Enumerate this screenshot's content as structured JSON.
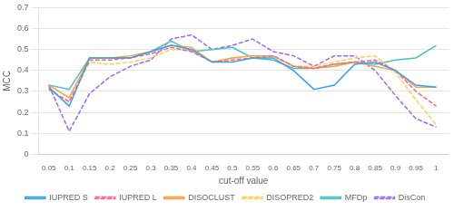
{
  "chart_data": {
    "type": "line",
    "x": [
      0.05,
      0.1,
      0.15,
      0.2,
      0.25,
      0.3,
      0.35,
      0.4,
      0.45,
      0.5,
      0.55,
      0.6,
      0.65,
      0.7,
      0.75,
      0.8,
      0.85,
      0.9,
      0.95,
      1.0
    ],
    "series": [
      {
        "name": "IUPRED S",
        "line_style": "solid",
        "values": [
          0.32,
          0.23,
          0.46,
          0.46,
          0.46,
          0.49,
          0.52,
          0.5,
          0.44,
          0.44,
          0.46,
          0.46,
          0.4,
          0.31,
          0.33,
          0.43,
          0.44,
          0.4,
          0.33,
          0.32
        ]
      },
      {
        "name": "IUPRED L",
        "line_style": "dashed",
        "values": [
          0.31,
          0.25,
          0.45,
          0.45,
          0.46,
          0.48,
          0.51,
          0.49,
          0.44,
          0.45,
          0.46,
          0.47,
          0.42,
          0.41,
          0.43,
          0.44,
          0.45,
          0.4,
          0.3,
          0.23
        ]
      },
      {
        "name": "DISOCLUST",
        "line_style": "solid",
        "values": [
          0.33,
          0.27,
          0.46,
          0.46,
          0.47,
          0.49,
          0.52,
          0.51,
          0.44,
          0.46,
          0.47,
          0.47,
          0.42,
          0.41,
          0.42,
          0.44,
          0.42,
          0.4,
          0.32,
          0.32
        ]
      },
      {
        "name": "DISOPRED2",
        "line_style": "dashed",
        "values": [
          0.31,
          0.25,
          0.44,
          0.43,
          0.44,
          0.46,
          0.5,
          0.5,
          0.44,
          0.46,
          0.47,
          0.47,
          0.42,
          0.42,
          0.44,
          0.46,
          0.47,
          0.39,
          0.26,
          0.14
        ]
      },
      {
        "name": "MFDp",
        "line_style": "solid",
        "values": [
          0.33,
          0.31,
          0.46,
          0.46,
          0.46,
          0.49,
          0.54,
          0.49,
          0.5,
          0.51,
          0.46,
          0.45,
          0.41,
          0.41,
          0.43,
          0.44,
          0.43,
          0.45,
          0.46,
          0.52
        ]
      },
      {
        "name": "DisCon",
        "line_style": "dashed",
        "values": [
          0.33,
          0.11,
          0.29,
          0.37,
          0.42,
          0.45,
          0.55,
          0.57,
          0.5,
          0.52,
          0.55,
          0.49,
          0.47,
          0.42,
          0.47,
          0.47,
          0.4,
          0.28,
          0.17,
          0.13
        ]
      }
    ],
    "marker": "none",
    "xlabel": "cut-off value",
    "ylabel": "MCC",
    "xlim": [
      0.025,
      1.03
    ],
    "xticks": [
      0.05,
      0.1,
      0.15,
      0.2,
      0.25,
      0.3,
      0.35,
      0.4,
      0.45,
      0.5,
      0.55,
      0.6,
      0.65,
      0.7,
      0.75,
      0.8,
      0.85,
      0.9,
      0.95,
      1
    ],
    "ylim": [
      0,
      0.7
    ],
    "yticks": [
      0,
      0.1,
      0.2,
      0.3,
      0.4,
      0.5,
      0.6,
      0.7
    ],
    "grid": "y",
    "legend": "bottom"
  }
}
